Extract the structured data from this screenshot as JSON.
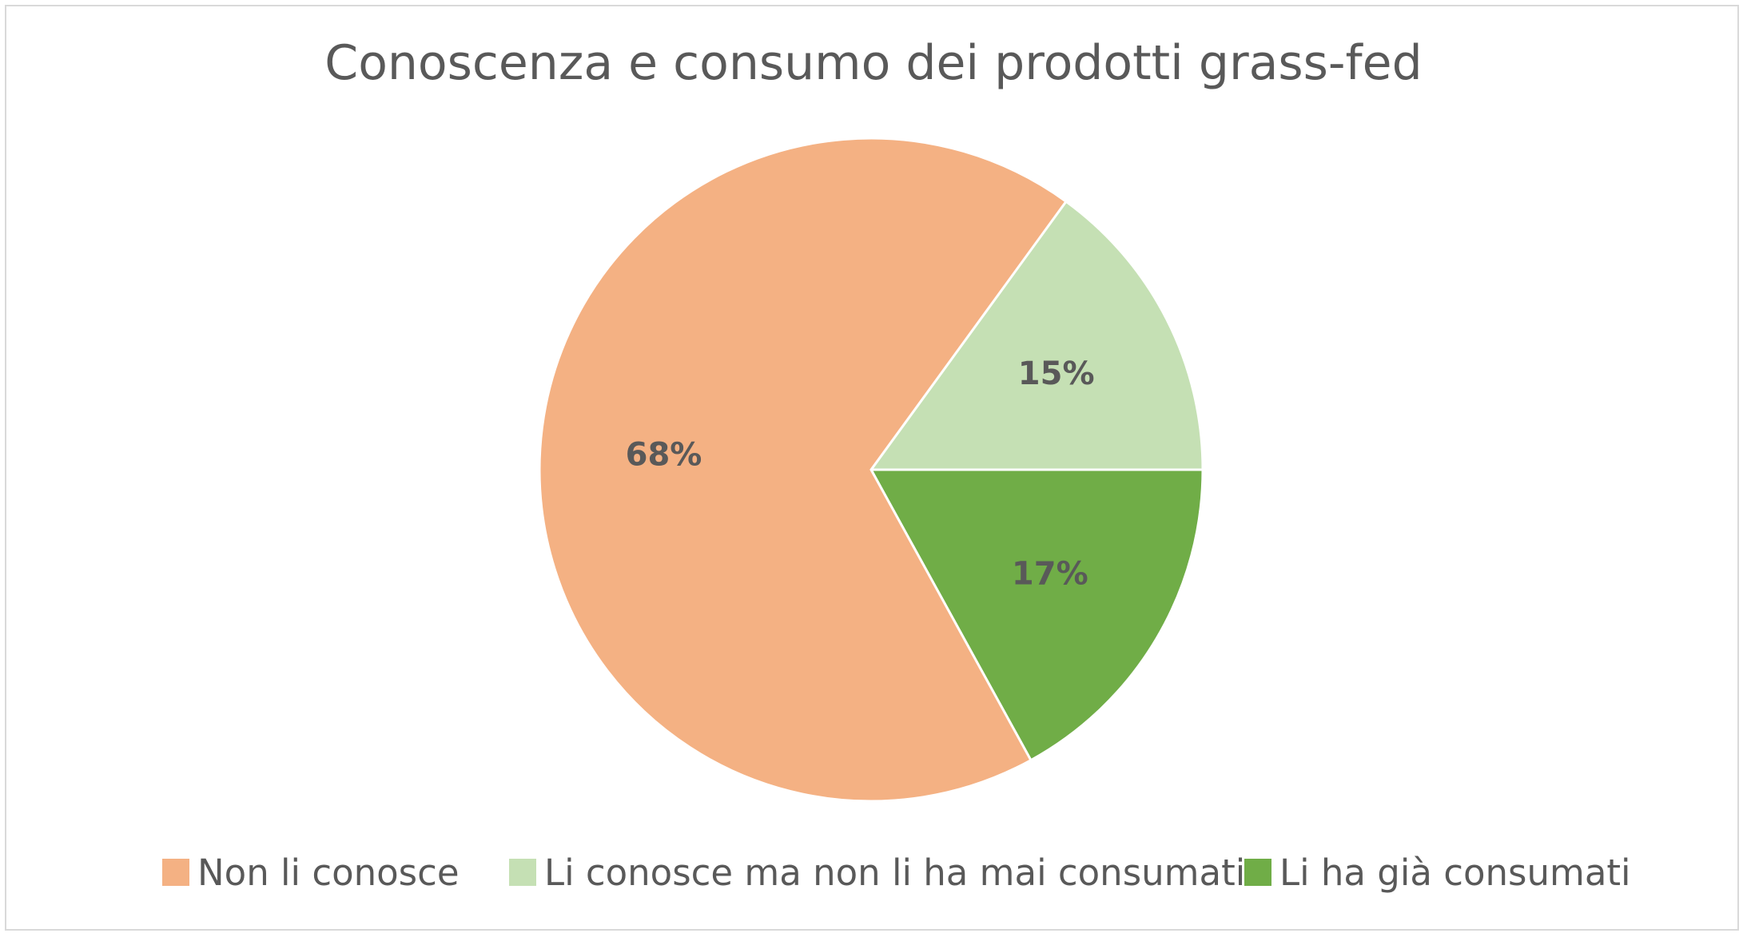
{
  "chart_data": {
    "type": "pie",
    "title": "Conoscenza e consumo dei prodotti grass-fed",
    "categories": [
      "Non li conosce",
      "Li conosce ma non li ha mai consumati",
      "Li ha già consumati"
    ],
    "values": [
      68,
      15,
      17
    ],
    "data_labels": [
      "68%",
      "15%",
      "17%"
    ],
    "colors": [
      "#f4b183",
      "#c5e0b4",
      "#70ad47"
    ],
    "start_angle_deg": 36,
    "direction": "clockwise",
    "legend_position": "bottom"
  }
}
